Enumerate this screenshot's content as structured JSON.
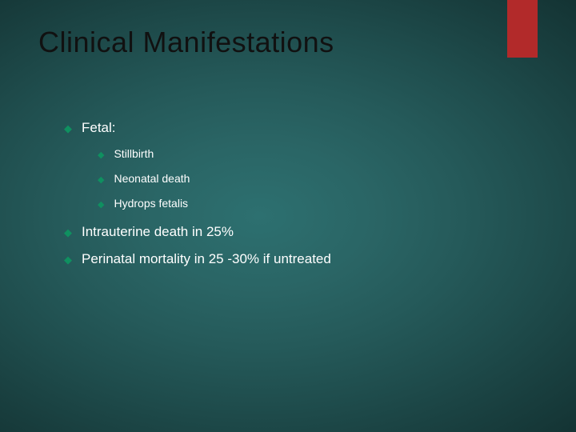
{
  "slide": {
    "title": "Clinical Manifestations",
    "accent_color": "#b22a2a",
    "bullet_color": "#0f9060",
    "title_color": "#111111",
    "text_color": "#ffffff",
    "background": {
      "type": "radial-gradient",
      "center_color": "#2d7070",
      "edge_color": "#081a1b"
    },
    "title_fontsize": 36,
    "body_fontsize_lvl1": 17,
    "body_fontsize_lvl2": 14,
    "items": [
      {
        "label": "Fetal:",
        "children": [
          {
            "label": "Stillbirth"
          },
          {
            "label": "Neonatal death"
          },
          {
            "label": "Hydrops fetalis"
          }
        ]
      },
      {
        "label": "Intrauterine death in 25%"
      },
      {
        "label": "Perinatal mortality in 25 -30% if untreated"
      }
    ]
  }
}
